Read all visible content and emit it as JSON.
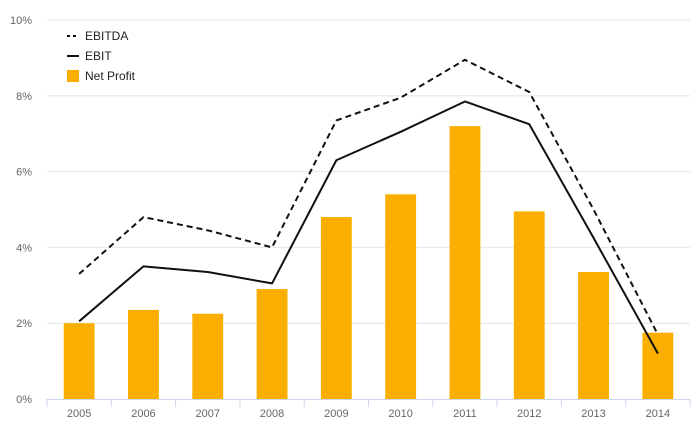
{
  "chart_data": {
    "type": "bar",
    "categories": [
      "2005",
      "2006",
      "2007",
      "2008",
      "2009",
      "2010",
      "2011",
      "2012",
      "2013",
      "2014"
    ],
    "series": [
      {
        "name": "EBITDA",
        "kind": "line",
        "style": "dashed",
        "color": "#111111",
        "values": [
          3.3,
          4.8,
          4.45,
          4.0,
          7.35,
          7.95,
          8.95,
          8.1,
          5.0,
          1.7
        ]
      },
      {
        "name": "EBIT",
        "kind": "line",
        "style": "solid",
        "color": "#111111",
        "values": [
          2.05,
          3.5,
          3.35,
          3.05,
          6.3,
          7.05,
          7.85,
          7.25,
          4.25,
          1.2
        ]
      },
      {
        "name": "Net Profit",
        "kind": "bar",
        "color": "#F9AE00",
        "values": [
          2.0,
          2.35,
          2.25,
          2.9,
          4.8,
          5.4,
          7.2,
          4.95,
          3.35,
          1.75
        ]
      }
    ],
    "y_ticks": [
      "0%",
      "2%",
      "4%",
      "6%",
      "8%",
      "10%"
    ],
    "ylim": [
      0,
      10
    ],
    "grid": true,
    "legend_position": "top-left"
  }
}
